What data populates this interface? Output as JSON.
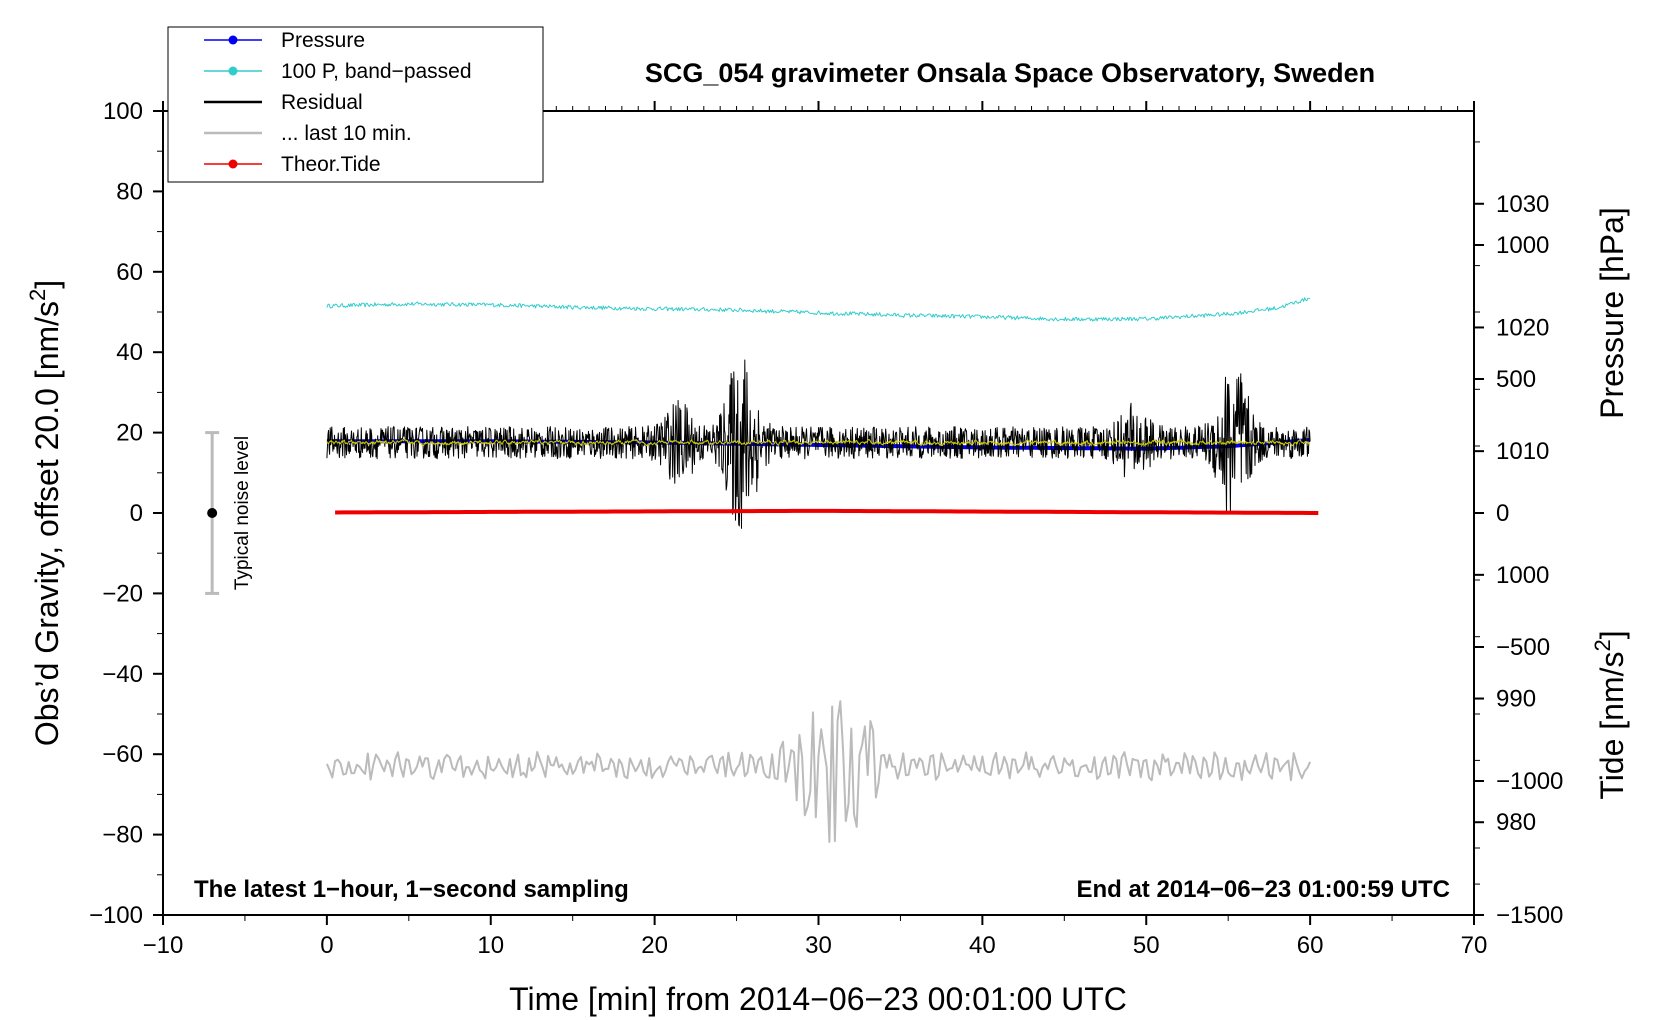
{
  "chart_data": {
    "type": "line",
    "title": "SCG_054 gravimeter Onsala Space Observatory, Sweden",
    "xlabel": "Time [min] from 2014−06−23 00:01:00 UTC",
    "ylabel_left": "Obs’d Gravity, offset 20.0 [nm/s",
    "ylabel_left_sup": "2",
    "ylabel_left_end": "]",
    "ylabel_right_pressure": "Pressure [hPa]",
    "ylabel_right_tide": "Tide [nm/s",
    "ylabel_right_tide_sup": "2",
    "ylabel_right_tide_end": "]",
    "xlim": [
      -10,
      70
    ],
    "ylim": [
      -100,
      100
    ],
    "pressure_ylim": [
      972.5,
      1037.5
    ],
    "tide_ylim": [
      -1500,
      1500
    ],
    "x_ticks": [
      "−10",
      "0",
      "10",
      "20",
      "30",
      "40",
      "50",
      "60",
      "70"
    ],
    "x_tick_values": [
      -10,
      0,
      10,
      20,
      30,
      40,
      50,
      60,
      70
    ],
    "y_ticks": [
      "100",
      "80",
      "60",
      "40",
      "20",
      "0",
      "−20",
      "−40",
      "−60",
      "−80",
      "−100"
    ],
    "y_tick_values": [
      100,
      80,
      60,
      40,
      20,
      0,
      -20,
      -40,
      -60,
      -80,
      -100
    ],
    "pressure_ticks": [
      "1030",
      "1020",
      "1010",
      "1000",
      "990",
      "980"
    ],
    "pressure_tick_values": [
      1030,
      1020,
      1010,
      1000,
      990,
      980
    ],
    "tide_ticks": [
      "1000",
      "500",
      "0",
      "−500",
      "−1000",
      "−1500"
    ],
    "tide_tick_values": [
      1000,
      500,
      0,
      -500,
      -1000,
      -1500
    ],
    "annotation_left": "The latest 1−hour, 1−second sampling",
    "annotation_right": "End at 2014−06−23 01:00:59 UTC",
    "noise_label": "Typical noise level",
    "noise_range": [
      -20,
      20
    ],
    "noise_x": -7,
    "legend": [
      {
        "label": "Pressure",
        "color": "#0000ee",
        "marker": true
      },
      {
        "label": "100 P, band−passed",
        "color": "#33cccc",
        "marker": true
      },
      {
        "label": "Residual",
        "color": "#000000",
        "marker": false
      },
      {
        "label": "... last 10 min.",
        "color": "#bbbbbb",
        "marker": false
      },
      {
        "label": "Theor.Tide",
        "color": "#ee0000",
        "marker": true
      }
    ],
    "series": [
      {
        "name": "Pressure",
        "color": "#0000ee",
        "axis": "pressure",
        "x": [
          0,
          10,
          20,
          30,
          40,
          50,
          55,
          60
        ],
        "values": [
          1010.8,
          1010.8,
          1010.7,
          1010.5,
          1010.3,
          1010.2,
          1010.4,
          1010.9
        ]
      },
      {
        "name": "100 P, band−passed",
        "color": "#33cccc",
        "axis": "left",
        "x": [
          0,
          5,
          10,
          15,
          20,
          25,
          30,
          35,
          40,
          45,
          50,
          55,
          58,
          60
        ],
        "values": [
          51.5,
          52.0,
          51.8,
          51.2,
          50.8,
          50.5,
          49.8,
          49.2,
          48.8,
          48.2,
          48.3,
          49.5,
          51.0,
          53.5
        ]
      },
      {
        "name": "Residual",
        "color": "#000000",
        "axis": "left",
        "x": [
          0,
          60
        ],
        "center": 17.5,
        "base_amplitude": 4,
        "bursts": [
          {
            "x": 25.3,
            "amp": 20
          },
          {
            "x": 55.3,
            "amp": 18
          },
          {
            "x": 21.5,
            "amp": 7
          },
          {
            "x": 49.2,
            "amp": 6
          }
        ]
      },
      {
        "name": "Residual smoothed",
        "color": "#cccc00",
        "axis": "left",
        "x": [
          0,
          60
        ],
        "center": 17.5,
        "base_amplitude": 1.2
      },
      {
        "name": "... last 10 min.",
        "color": "#bbbbbb",
        "axis": "left",
        "x": [
          0,
          60
        ],
        "center": -63,
        "base_amplitude": 3,
        "bursts": [
          {
            "x": 31,
            "amp": 18
          }
        ]
      },
      {
        "name": "Theor.Tide",
        "color": "#ee0000",
        "axis": "tide",
        "x": [
          0.5,
          30,
          60.5
        ],
        "values": [
          2,
          8,
          0
        ]
      }
    ]
  }
}
